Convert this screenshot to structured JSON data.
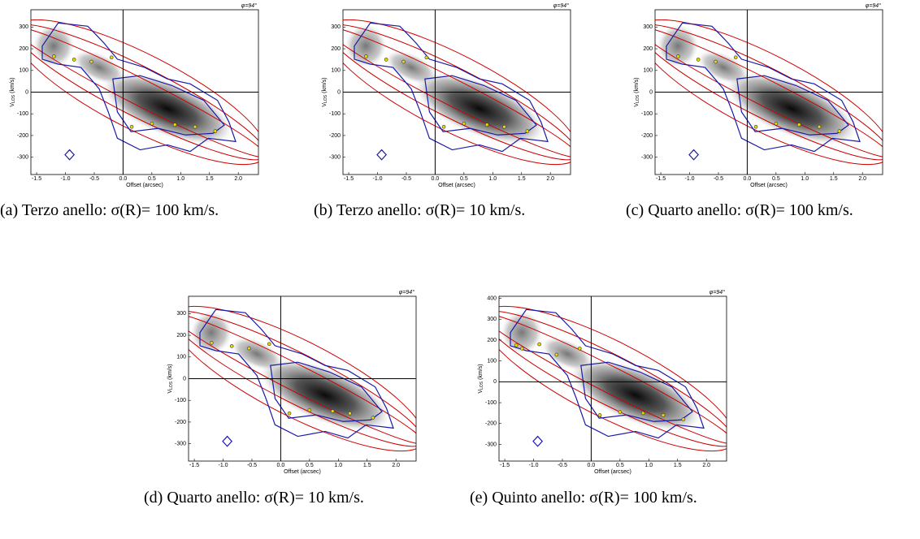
{
  "chart_data": [
    {
      "type": "scatter",
      "caption": "(a) Terzo anello: σ(R)= 100 km/s.",
      "annotation": "φ=94°",
      "xlabel": "Offset (arcsec)",
      "ylabel": {
        "main": "V",
        "sub": "LOS",
        "unit": "(km/s)"
      },
      "xlim": [
        -1.6,
        2.35
      ],
      "ylim": [
        -380,
        380
      ],
      "xticks": [
        {
          "value": -1.5,
          "label": "-1.5"
        },
        {
          "value": -1,
          "label": "-1.0"
        },
        {
          "value": -0.5,
          "label": "-0.5"
        },
        {
          "value": 0,
          "label": "0.0"
        },
        0.5,
        {
          "value": 1,
          "label": "1.0"
        },
        1.5,
        {
          "value": 2,
          "label": "2.0"
        }
      ],
      "yticks": [
        -300,
        -200,
        -100,
        0,
        100,
        200,
        300
      ],
      "color": "#e8d800",
      "x": [
        -1.2,
        -0.85,
        -0.55,
        -0.2,
        0.15,
        0.5,
        0.9,
        1.25,
        1.6
      ],
      "y": [
        165,
        150,
        140,
        160,
        -160,
        -145,
        -150,
        -160,
        -180
      ]
    },
    {
      "type": "scatter",
      "caption": "(b) Terzo anello: σ(R)= 10 km/s.",
      "annotation": "φ=94°",
      "xlabel": "Offset (arcsec)",
      "ylabel": {
        "main": "V",
        "sub": "LOS",
        "unit": "(km/s)"
      },
      "xlim": [
        -1.6,
        2.35
      ],
      "ylim": [
        -380,
        380
      ],
      "xticks": [
        {
          "value": -1.5,
          "label": "-1.5"
        },
        {
          "value": -1,
          "label": "-1.0"
        },
        {
          "value": -0.5,
          "label": "-0.5"
        },
        {
          "value": 0,
          "label": "0.0"
        },
        0.5,
        {
          "value": 1,
          "label": "1.0"
        },
        1.5,
        {
          "value": 2,
          "label": "2.0"
        }
      ],
      "yticks": [
        -300,
        -200,
        -100,
        0,
        100,
        200,
        300
      ],
      "color": "#e8d800",
      "x": [
        -1.2,
        -0.85,
        -0.55,
        -0.15,
        0.15,
        0.5,
        0.9,
        1.2,
        1.6
      ],
      "y": [
        165,
        150,
        140,
        160,
        -160,
        -145,
        -150,
        -160,
        -180
      ]
    },
    {
      "type": "scatter",
      "caption": "(c) Quarto anello: σ(R)= 100 km/s.",
      "annotation": "φ=94°",
      "xlabel": "Offset (arcsec)",
      "ylabel": {
        "main": "V",
        "sub": "LOS",
        "unit": "(km/s)"
      },
      "xlim": [
        -1.6,
        2.35
      ],
      "ylim": [
        -380,
        380
      ],
      "xticks": [
        {
          "value": -1.5,
          "label": "-1.5"
        },
        {
          "value": -1,
          "label": "-1.0"
        },
        {
          "value": -0.5,
          "label": "-0.5"
        },
        {
          "value": 0,
          "label": "0.0"
        },
        0.5,
        {
          "value": 1,
          "label": "1.0"
        },
        1.5,
        {
          "value": 2,
          "label": "2.0"
        }
      ],
      "yticks": [
        -300,
        -200,
        -100,
        0,
        100,
        200,
        300
      ],
      "color": "#e8d800",
      "x": [
        -1.2,
        -0.85,
        -0.55,
        -0.2,
        0.15,
        0.5,
        0.9,
        1.25,
        1.6
      ],
      "y": [
        165,
        150,
        140,
        160,
        -160,
        -145,
        -150,
        -160,
        -180
      ]
    },
    {
      "type": "scatter",
      "caption": "(d) Quarto anello: σ(R)= 10 km/s.",
      "annotation": "φ=94°",
      "xlabel": "Offset (arcsec)",
      "ylabel": {
        "main": "V",
        "sub": "LOS",
        "unit": "(km/s)"
      },
      "xlim": [
        -1.6,
        2.35
      ],
      "ylim": [
        -380,
        380
      ],
      "xticks": [
        {
          "value": -1.5,
          "label": "-1.5"
        },
        {
          "value": -1,
          "label": "-1.0"
        },
        {
          "value": -0.5,
          "label": "-0.5"
        },
        {
          "value": 0,
          "label": "0.0"
        },
        0.5,
        {
          "value": 1,
          "label": "1.0"
        },
        1.5,
        {
          "value": 2,
          "label": "2.0"
        }
      ],
      "yticks": [
        -300,
        -200,
        -100,
        0,
        100,
        200,
        300
      ],
      "color": "#e8d800",
      "x": [
        -1.2,
        -0.85,
        -0.55,
        -0.2,
        0.15,
        0.5,
        0.9,
        1.2,
        1.6
      ],
      "y": [
        165,
        150,
        140,
        160,
        -160,
        -145,
        -150,
        -160,
        -180
      ]
    },
    {
      "type": "scatter",
      "caption": "(e) Quinto anello: σ(R)= 100 km/s.",
      "annotation": "φ=94°",
      "xlabel": "Offset (arcsec)",
      "ylabel": {
        "main": "V",
        "sub": "LOS",
        "unit": "(km/s)"
      },
      "xlim": [
        -1.6,
        2.35
      ],
      "ylim": [
        -380,
        410
      ],
      "xticks": [
        {
          "value": -1.5,
          "label": "-1.5"
        },
        {
          "value": -1,
          "label": "-1.0"
        },
        {
          "value": -0.5,
          "label": "-0.5"
        },
        {
          "value": 0,
          "label": "0.0"
        },
        0.5,
        {
          "value": 1,
          "label": "1.0"
        },
        1.5,
        {
          "value": 2,
          "label": "2.0"
        }
      ],
      "yticks": [
        -300,
        -200,
        -100,
        0,
        100,
        200,
        300,
        400
      ],
      "color": "#e8d800",
      "x": [
        -1.3,
        -1.2,
        -0.9,
        -0.6,
        -0.2,
        0.15,
        0.5,
        0.9,
        1.25,
        1.6
      ],
      "y": [
        175,
        160,
        180,
        130,
        160,
        -160,
        -145,
        -150,
        -160,
        -180
      ]
    }
  ]
}
